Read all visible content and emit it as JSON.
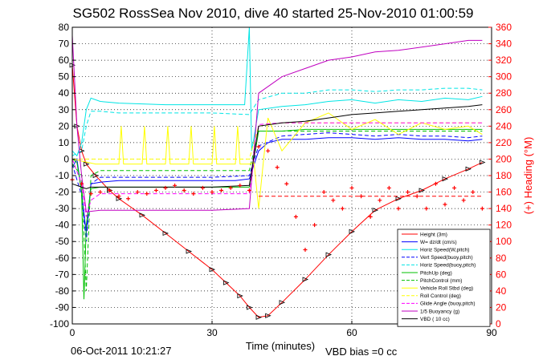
{
  "chart_data": {
    "type": "line",
    "title": "SG502 RossSea Nov 2010, dive 40 started 25-Nov-2010 01:00:59",
    "xlabel": "Time (minutes)",
    "ylabel_right": "(+) Heading (°M)",
    "xlim": [
      0,
      90
    ],
    "ylim": [
      -100,
      80
    ],
    "ylim_right": [
      0,
      360
    ],
    "xticks": [
      0,
      30,
      60,
      90
    ],
    "yticks": [
      -100,
      -90,
      -80,
      -70,
      -60,
      -50,
      -40,
      -30,
      -20,
      -10,
      0,
      10,
      20,
      30,
      40,
      50,
      60,
      70,
      80
    ],
    "yticks_right": [
      0,
      20,
      40,
      60,
      80,
      100,
      120,
      140,
      160,
      180,
      200,
      220,
      240,
      260,
      280,
      300,
      320,
      340,
      360
    ],
    "grid": true,
    "legend_position": "bottom-right",
    "series": [
      {
        "name": "Height (3m)",
        "color": "#ff0000",
        "style": "solid",
        "marker": "triangle",
        "x": [
          0,
          1,
          2,
          3,
          5,
          8,
          10,
          15,
          20,
          25,
          30,
          33,
          36,
          38,
          40,
          42,
          45,
          50,
          55,
          60,
          65,
          70,
          75,
          80,
          85,
          88
        ],
        "y": [
          57,
          20,
          5,
          -3,
          -10,
          -19,
          -24,
          -34,
          -45,
          -56,
          -67,
          -75,
          -83,
          -90,
          -96,
          -95,
          -87,
          -73,
          -58,
          -44,
          -31,
          -24,
          -19,
          -12,
          -6,
          -2
        ]
      },
      {
        "name": "W= dz/dt (cm/s)",
        "color": "#0000ff",
        "style": "solid",
        "x": [
          0,
          1,
          2,
          3,
          4,
          6,
          10,
          20,
          30,
          35,
          38,
          40,
          42,
          45,
          50,
          55,
          60,
          65,
          70,
          75,
          80,
          85,
          88
        ],
        "y": [
          -5,
          0,
          -20,
          -45,
          -15,
          -14,
          -13,
          -13,
          -13,
          -13,
          -12,
          5,
          10,
          12,
          12,
          13,
          13,
          12,
          13,
          12,
          12,
          11,
          12
        ]
      },
      {
        "name": "Horiz Speed(W,pitch)",
        "color": "#00e5e5",
        "style": "solid",
        "x": [
          0,
          1,
          2,
          3,
          4,
          6,
          10,
          20,
          30,
          35,
          37,
          38,
          38.5,
          40,
          45,
          50,
          55,
          60,
          65,
          70,
          75,
          80,
          85,
          88
        ],
        "y": [
          5,
          2,
          10,
          30,
          37,
          35,
          34,
          33,
          33,
          33,
          33,
          80,
          5,
          30,
          32,
          33,
          35,
          36,
          34,
          36,
          35,
          37,
          36,
          38
        ]
      },
      {
        "name": "Vert Speed(buoy,pitch)",
        "color": "#0000ff",
        "style": "dashed",
        "x": [
          0,
          2,
          3,
          4,
          6,
          10,
          20,
          30,
          38,
          40,
          45,
          50,
          55,
          60,
          65,
          70,
          75,
          80,
          85,
          88
        ],
        "y": [
          -3,
          -22,
          -50,
          -15,
          -11,
          -11,
          -11,
          -11,
          -10,
          8,
          14,
          15,
          16,
          15,
          14,
          15,
          14,
          14,
          13,
          14
        ]
      },
      {
        "name": "Horiz Speed(buoy,pitch)",
        "color": "#00e5e5",
        "style": "dashed",
        "x": [
          0,
          2,
          3,
          4,
          6,
          10,
          20,
          30,
          38,
          40,
          45,
          50,
          55,
          60,
          65,
          70,
          75,
          80,
          85,
          88
        ],
        "y": [
          2,
          5,
          20,
          29,
          29,
          28,
          28,
          28,
          27,
          36,
          40,
          40,
          42,
          42,
          41,
          42,
          42,
          43,
          43,
          42
        ]
      },
      {
        "name": "PitchUp (deg)",
        "color": "#00c000",
        "style": "solid",
        "x": [
          0,
          1,
          2,
          2.5,
          3,
          4,
          6,
          10,
          20,
          30,
          38,
          40,
          45,
          50,
          55,
          60,
          65,
          70,
          75,
          80,
          85,
          88
        ],
        "y": [
          0,
          -2,
          -20,
          -85,
          -40,
          -18,
          -17,
          -17,
          -17,
          -17,
          -17,
          17,
          17,
          18,
          18,
          18,
          18,
          18,
          18,
          18,
          18,
          18
        ]
      },
      {
        "name": "PitchControl (mm)",
        "color": "#00c000",
        "style": "dashed",
        "x": [
          0,
          2,
          3,
          4,
          6,
          10,
          20,
          30,
          38,
          40,
          45,
          50,
          55,
          60,
          65,
          70,
          75,
          80,
          85,
          88
        ],
        "y": [
          -3,
          -10,
          -80,
          -10,
          -7,
          -7,
          -7,
          -7,
          -7,
          17,
          17,
          17,
          17,
          17,
          17,
          17,
          17,
          17,
          17,
          17
        ]
      },
      {
        "name": "Vehicle Roll Stbd (deg)",
        "color": "#ffff00",
        "style": "solid",
        "x": [
          0,
          5,
          10,
          10.5,
          11,
          15,
          15.5,
          16,
          20,
          20.5,
          21,
          25,
          25.5,
          26,
          30,
          30.5,
          31,
          35,
          35.5,
          36,
          38,
          39,
          40,
          41,
          42,
          45,
          50,
          55,
          60,
          65,
          70,
          75,
          80,
          85,
          88
        ],
        "y": [
          0,
          -3,
          -3,
          20,
          -3,
          -3,
          20,
          -3,
          -3,
          20,
          -3,
          -3,
          20,
          -3,
          -3,
          20,
          -3,
          -3,
          20,
          -3,
          -3,
          -2,
          -30,
          -2,
          25,
          5,
          22,
          28,
          18,
          24,
          15,
          22,
          18,
          20,
          15
        ]
      },
      {
        "name": "Roll Control (deg)",
        "color": "#ffff00",
        "style": "dashed",
        "x": [
          0,
          10,
          20,
          30,
          38,
          40,
          45,
          50,
          60,
          70,
          80,
          88
        ],
        "y": [
          0,
          0,
          0,
          0,
          0,
          20,
          22,
          22,
          22,
          22,
          22,
          22
        ]
      },
      {
        "name": "Glide Angle (buoy,pitch)",
        "color": "#ff00ff",
        "style": "dashed",
        "x": [
          0,
          2,
          3,
          4,
          6,
          10,
          20,
          30,
          38,
          40,
          45,
          50,
          60,
          70,
          80,
          88
        ],
        "y": [
          0,
          -15,
          -35,
          -25,
          -21,
          -21,
          -21,
          -21,
          -21,
          21,
          22,
          22,
          22,
          22,
          22,
          22
        ]
      },
      {
        "name": "1/5 Buoyancy (g)",
        "color": "#c000c0",
        "style": "solid",
        "x": [
          0,
          1,
          2,
          3,
          6,
          10,
          20,
          30,
          38,
          40,
          45,
          50,
          55,
          60,
          65,
          70,
          75,
          80,
          85,
          88
        ],
        "y": [
          75,
          20,
          -10,
          -32,
          -31,
          -31,
          -31,
          -31,
          -30,
          40,
          50,
          55,
          60,
          62,
          65,
          66,
          68,
          70,
          72,
          72
        ]
      },
      {
        "name": "VBD ( 10 cc)",
        "color": "#000000",
        "style": "solid",
        "x": [
          0,
          2,
          3,
          4,
          6,
          10,
          20,
          30,
          38,
          40,
          45,
          50,
          55,
          60,
          65,
          70,
          75,
          80,
          85,
          88
        ],
        "y": [
          -15,
          -17,
          -18,
          -17,
          -17,
          -17,
          -17,
          -17,
          -16,
          20,
          22,
          23,
          25,
          27,
          28,
          29,
          30,
          31,
          32,
          33
        ]
      },
      {
        "name": "Heading",
        "color": "#ff0000",
        "style": "markers",
        "axis": "right",
        "x": [
          0,
          2,
          4,
          6,
          8,
          10,
          12,
          14,
          16,
          18,
          20,
          22,
          24,
          26,
          28,
          30,
          32,
          34,
          36,
          38,
          40,
          42,
          44,
          46,
          48,
          50,
          52,
          54,
          56,
          58,
          60,
          62,
          64,
          66,
          68,
          70,
          72,
          74,
          76,
          78,
          80,
          82,
          84,
          86,
          88
        ],
        "y": [
          175,
          170,
          158,
          160,
          162,
          155,
          152,
          160,
          158,
          162,
          165,
          168,
          162,
          158,
          165,
          160,
          162,
          165,
          168,
          162,
          215,
          210,
          190,
          170,
          130,
          90,
          120,
          160,
          150,
          140,
          165,
          155,
          130,
          150,
          165,
          140,
          160,
          155,
          140,
          170,
          145,
          165,
          150,
          160,
          140
        ]
      },
      {
        "name": "Heading target",
        "color": "#ff0000",
        "style": "dashed",
        "axis": "right",
        "x": [
          40,
          88
        ],
        "y": [
          155,
          155
        ]
      }
    ],
    "legend": [
      "Height (3m)",
      "W= dz/dt (cm/s)",
      "Horiz Speed(W,pitch)",
      "Vert Speed(buoy,pitch)",
      "Horiz Speed(buoy,pitch)",
      "PitchUp (deg)",
      "PitchControl (mm)",
      "Vehicle Roll Stbd (deg)",
      "Roll Control (deg)",
      "Glide Angle (buoy,pitch)",
      "1/5 Buoyancy (g)",
      "VBD ( 10 cc)"
    ]
  },
  "footer": {
    "timestamp": "06-Oct-2011 10:21:27",
    "vbd_bias": "VBD bias =0 cc"
  }
}
